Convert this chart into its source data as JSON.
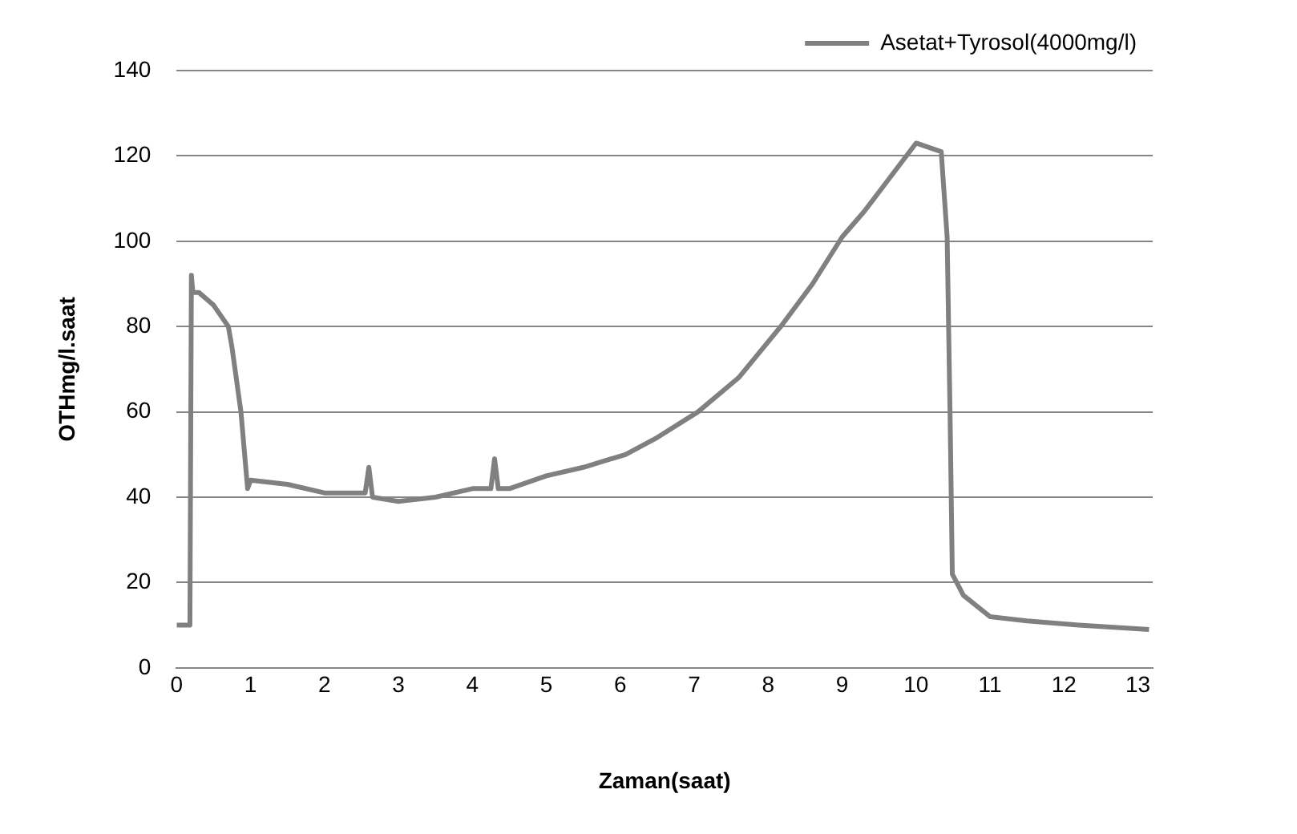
{
  "chart_data": {
    "type": "line",
    "xlabel": "Zaman(saat)",
    "ylabel": "OTHmg/l.saat",
    "xlim": [
      0,
      13.2
    ],
    "xticks": [
      0,
      1,
      2,
      3,
      4,
      5,
      6,
      7,
      8,
      9,
      10,
      11,
      12,
      13
    ],
    "ylim": [
      0,
      140
    ],
    "yticks": [
      0,
      20,
      40,
      60,
      80,
      100,
      120,
      140
    ],
    "grid": "y",
    "legend": "top right",
    "marker": "none",
    "line_style": "solid",
    "series": [
      {
        "name": "Asetat+Tyrosol(4000mg/l)",
        "color": "#808080",
        "x": [
          0,
          0.18,
          0.2,
          0.22,
          0.3,
          0.5,
          0.7,
          0.75,
          0.87,
          0.96,
          1.0,
          1.5,
          2.0,
          2.55,
          2.6,
          2.65,
          3.0,
          3.5,
          4.0,
          4.25,
          4.3,
          4.35,
          4.5,
          5.0,
          5.5,
          6.07,
          6.5,
          7.05,
          7.6,
          8.17,
          8.6,
          9.0,
          9.3,
          9.65,
          10.0,
          10.34,
          10.42,
          10.46,
          10.49,
          10.64,
          11.0,
          11.5,
          12.2,
          13.15
        ],
        "values": [
          10,
          10,
          92,
          88,
          88,
          85,
          80,
          75,
          60,
          42,
          44,
          43,
          41,
          41,
          47,
          40,
          39,
          40,
          42,
          42,
          49,
          42,
          42,
          45,
          47,
          50,
          54,
          60,
          68,
          80,
          90,
          101,
          107,
          115,
          123,
          121,
          101,
          59,
          22,
          17,
          12,
          11,
          10,
          9
        ]
      }
    ]
  }
}
